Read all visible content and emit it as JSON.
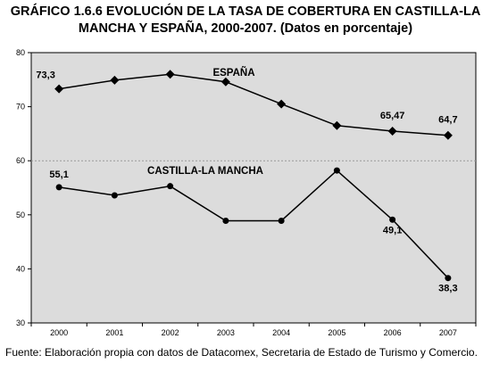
{
  "title_line1": "GRÁFICO 1.6.6 EVOLUCIÓN DE LA TASA DE COBERTURA EN CASTILLA-LA",
  "title_line2": "MANCHA Y ESPAÑA, 2000-2007. (Datos en porcentaje)",
  "source": "Fuente: Elaboración propia con datos de Datacomex, Secretaria de Estado de Turismo y Comercio.",
  "chart_data": {
    "type": "line",
    "title": "GRÁFICO 1.6.6 EVOLUCIÓN DE LA TASA DE COBERTURA EN CASTILLA-LA MANCHA Y ESPAÑA, 2000-2007. (Datos en porcentaje)",
    "xlabel": "",
    "ylabel": "",
    "categories": [
      "2000",
      "2001",
      "2002",
      "2003",
      "2004",
      "2005",
      "2006",
      "2007"
    ],
    "ylim": [
      30,
      80
    ],
    "yticks": [
      "30",
      "40",
      "50",
      "60",
      "70",
      "80"
    ],
    "reference_line": 60,
    "grid": false,
    "series": [
      {
        "name": "ESPAÑA",
        "marker": "diamond",
        "values": [
          73.3,
          74.9,
          76.0,
          74.6,
          70.5,
          66.5,
          65.47,
          64.7
        ],
        "labels": [
          "73,3",
          "",
          "",
          "",
          "",
          "",
          "65,47",
          "64,7"
        ]
      },
      {
        "name": "CASTILLA-LA MANCHA",
        "marker": "circle",
        "values": [
          55.1,
          53.6,
          55.3,
          48.9,
          48.9,
          58.2,
          49.1,
          38.3
        ],
        "labels": [
          "55,1",
          "",
          "",
          "",
          "",
          "",
          "49,1",
          "38,3"
        ]
      }
    ],
    "colors": {
      "plot_bg": "#dcdcdc",
      "line": "#000000",
      "reference": "#9a9a9a"
    }
  }
}
